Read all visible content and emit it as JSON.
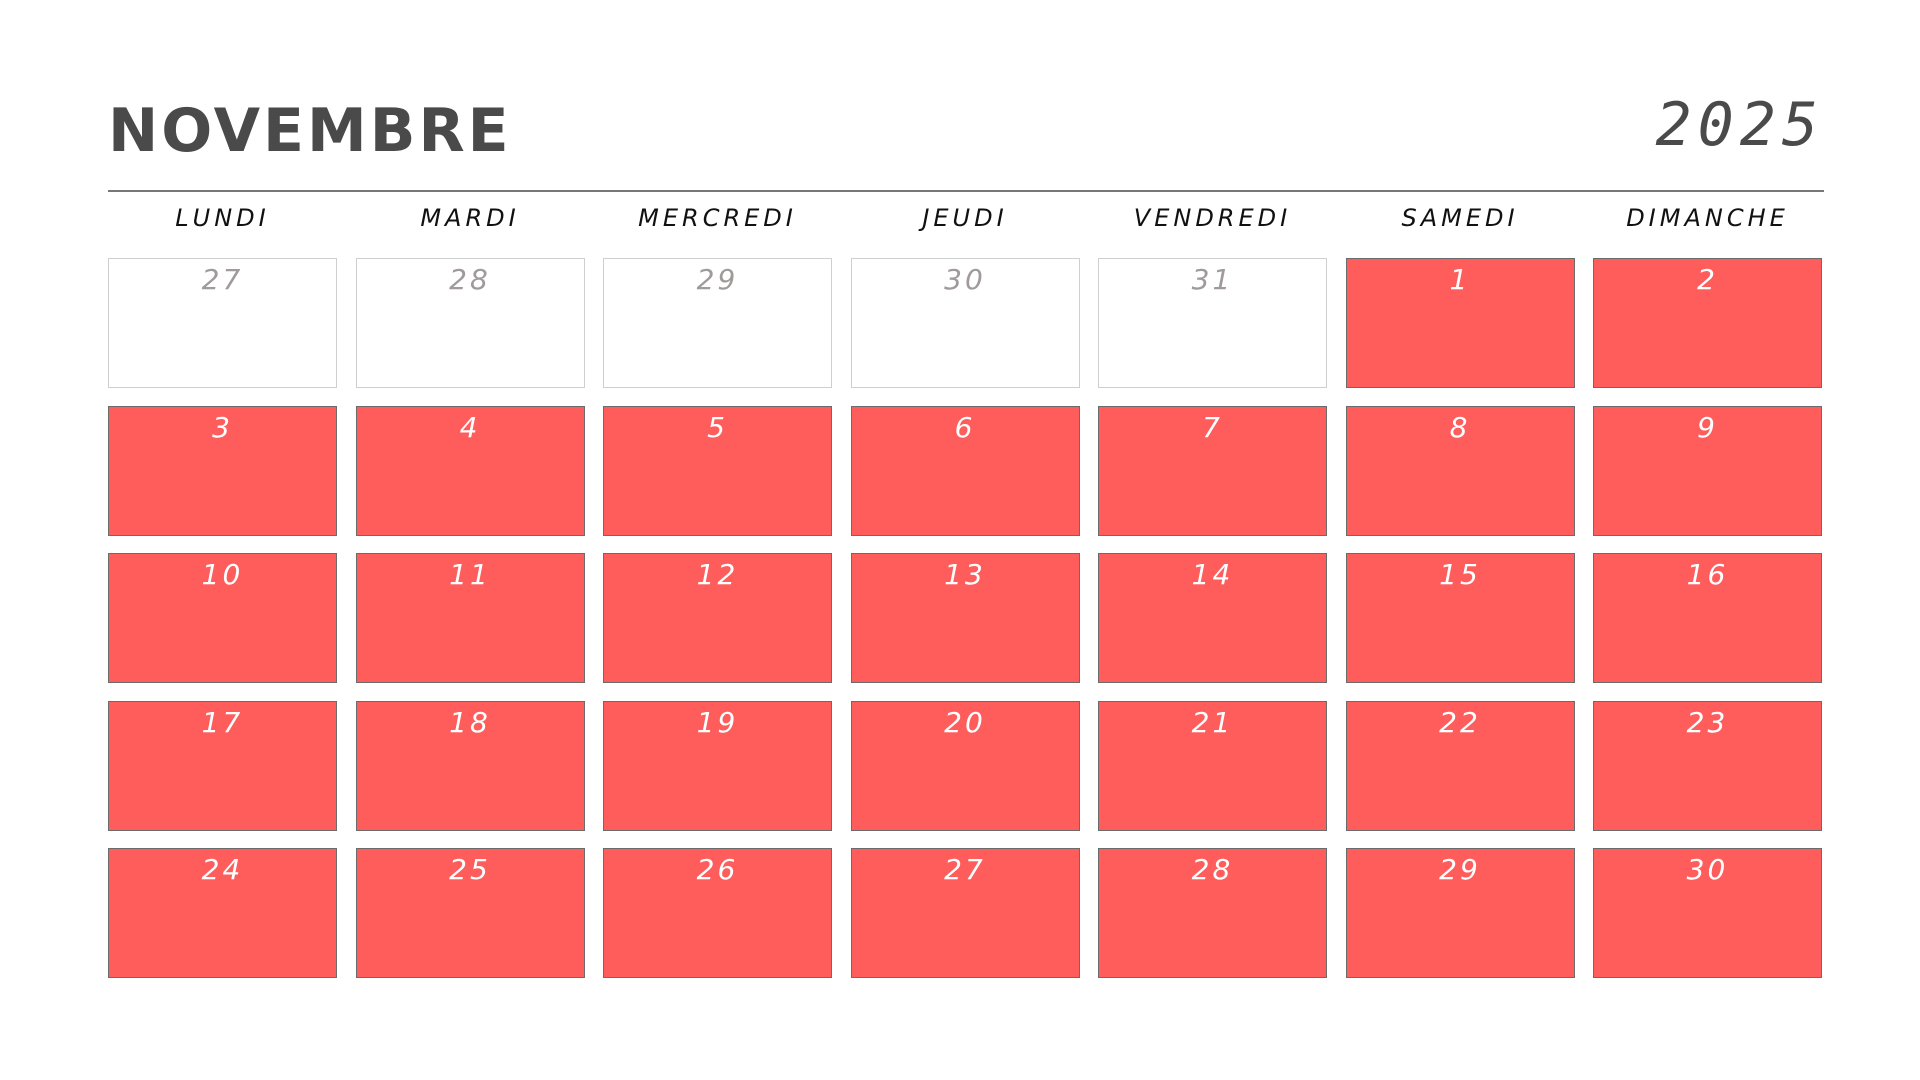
{
  "header": {
    "month": "NOVEMBRE",
    "year": "2025"
  },
  "weekdays": [
    "LUNDI",
    "MARDI",
    "MERCREDI",
    "JEUDI",
    "VENDREDI",
    "SAMEDI",
    "DIMANCHE"
  ],
  "days": [
    {
      "n": "27",
      "current": false
    },
    {
      "n": "28",
      "current": false
    },
    {
      "n": "29",
      "current": false
    },
    {
      "n": "30",
      "current": false
    },
    {
      "n": "31",
      "current": false
    },
    {
      "n": "1",
      "current": true
    },
    {
      "n": "2",
      "current": true
    },
    {
      "n": "3",
      "current": true
    },
    {
      "n": "4",
      "current": true
    },
    {
      "n": "5",
      "current": true
    },
    {
      "n": "6",
      "current": true
    },
    {
      "n": "7",
      "current": true
    },
    {
      "n": "8",
      "current": true
    },
    {
      "n": "9",
      "current": true
    },
    {
      "n": "10",
      "current": true
    },
    {
      "n": "11",
      "current": true
    },
    {
      "n": "12",
      "current": true
    },
    {
      "n": "13",
      "current": true
    },
    {
      "n": "14",
      "current": true
    },
    {
      "n": "15",
      "current": true
    },
    {
      "n": "16",
      "current": true
    },
    {
      "n": "17",
      "current": true
    },
    {
      "n": "18",
      "current": true
    },
    {
      "n": "19",
      "current": true
    },
    {
      "n": "20",
      "current": true
    },
    {
      "n": "21",
      "current": true
    },
    {
      "n": "22",
      "current": true
    },
    {
      "n": "23",
      "current": true
    },
    {
      "n": "24",
      "current": true
    },
    {
      "n": "25",
      "current": true
    },
    {
      "n": "26",
      "current": true
    },
    {
      "n": "27",
      "current": true
    },
    {
      "n": "28",
      "current": true
    },
    {
      "n": "29",
      "current": true
    },
    {
      "n": "30",
      "current": true
    }
  ],
  "colors": {
    "accent": "#ff5c5c",
    "text_dark": "#4a4a4a",
    "muted_number": "#a19a9a"
  }
}
